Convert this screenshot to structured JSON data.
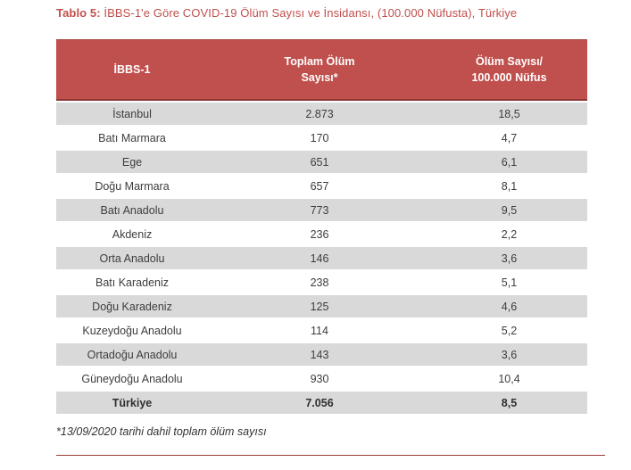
{
  "caption": {
    "label": "Tablo 5:",
    "text": "İBBS-1'e Göre COVID-19 Ölüm Sayısı ve İnsidansı, (100.000 Nüfusta), Türkiye"
  },
  "table": {
    "columns": [
      {
        "label": "İBBS-1"
      },
      {
        "label": "Toplam Ölüm\nSayısı*"
      },
      {
        "label": "Ölüm Sayısı/\n100.000 Nüfus"
      }
    ],
    "rows": [
      {
        "region": "İstanbul",
        "deaths": "2.873",
        "incidence": "18,5",
        "bold": false
      },
      {
        "region": "Batı Marmara",
        "deaths": "170",
        "incidence": "4,7",
        "bold": false
      },
      {
        "region": "Ege",
        "deaths": "651",
        "incidence": "6,1",
        "bold": false
      },
      {
        "region": "Doğu Marmara",
        "deaths": "657",
        "incidence": "8,1",
        "bold": false
      },
      {
        "region": "Batı Anadolu",
        "deaths": "773",
        "incidence": "9,5",
        "bold": false
      },
      {
        "region": "Akdeniz",
        "deaths": "236",
        "incidence": "2,2",
        "bold": false
      },
      {
        "region": "Orta Anadolu",
        "deaths": "146",
        "incidence": "3,6",
        "bold": false
      },
      {
        "region": "Batı Karadeniz",
        "deaths": "238",
        "incidence": "5,1",
        "bold": false
      },
      {
        "region": "Doğu Karadeniz",
        "deaths": "125",
        "incidence": "4,6",
        "bold": false
      },
      {
        "region": "Kuzeydoğu Anadolu",
        "deaths": "114",
        "incidence": "5,2",
        "bold": false
      },
      {
        "region": "Ortadoğu Anadolu",
        "deaths": "143",
        "incidence": "3,6",
        "bold": false
      },
      {
        "region": "Güneydoğu Anadolu",
        "deaths": "930",
        "incidence": "10,4",
        "bold": false
      },
      {
        "region": "Türkiye",
        "deaths": "7.056",
        "incidence": "8,5",
        "bold": true
      }
    ]
  },
  "footnote": "*13/09/2020 tarihi dahil toplam ölüm sayısı",
  "colors": {
    "accent_red": "#c0504d",
    "header_border": "#8e3734",
    "row_shade": "#d9d9d9",
    "rule": "#9a3b38",
    "body_text": "#3d3d3d"
  }
}
